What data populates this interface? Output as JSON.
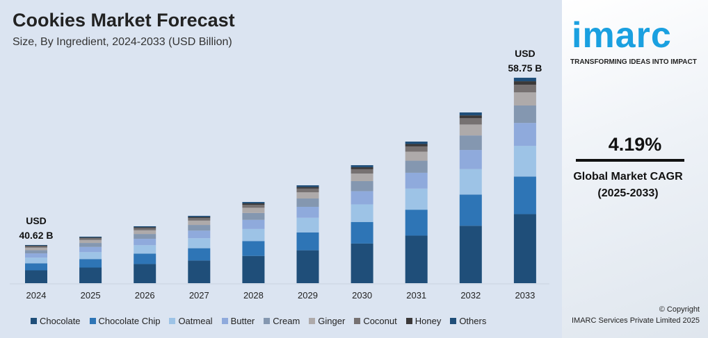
{
  "title": "Cookies Market Forecast",
  "subtitle": "Size, By Ingredient, 2024-2033 (USD Billion)",
  "brand": {
    "logo": "imarc",
    "tagline": "TRANSFORMING IDEAS INTO IMPACT",
    "color": "#1aa0e0"
  },
  "cagr": {
    "value": "4.19%",
    "label_line1": "Global Market CAGR",
    "label_line2": "(2025-2033)"
  },
  "copyright": {
    "line1": "© Copyright",
    "line2": "IMARC Services Private Limited 2025"
  },
  "chart_data": {
    "type": "bar",
    "stacked": true,
    "title": "Cookies Market Forecast",
    "subtitle": "Size, By Ingredient, 2024-2033 (USD Billion)",
    "categories": [
      "2024",
      "2025",
      "2026",
      "2027",
      "2028",
      "2029",
      "2030",
      "2031",
      "2032",
      "2033"
    ],
    "totals": [
      40.62,
      41.52,
      42.65,
      43.78,
      45.28,
      47.09,
      49.27,
      51.83,
      54.99,
      58.75
    ],
    "annotations": [
      {
        "category": "2024",
        "line1": "USD",
        "line2": "40.62 B"
      },
      {
        "category": "2033",
        "line1": "USD",
        "line2": "58.75 B"
      }
    ],
    "legend_position": "bottom",
    "grid": false,
    "series": [
      {
        "name": "Chocolate",
        "color": "#1f4e79",
        "values": [
          13.65,
          13.95,
          14.33,
          14.71,
          15.21,
          15.82,
          16.55,
          17.41,
          18.48,
          19.74
        ]
      },
      {
        "name": "Chocolate Chip",
        "color": "#2e75b6",
        "values": [
          7.43,
          7.6,
          7.8,
          8.01,
          8.29,
          8.62,
          9.02,
          9.48,
          10.06,
          10.75
        ]
      },
      {
        "name": "Oatmeal",
        "color": "#9dc3e6",
        "values": [
          6.05,
          6.19,
          6.35,
          6.52,
          6.75,
          7.02,
          7.34,
          7.72,
          8.19,
          8.75
        ]
      },
      {
        "name": "Butter",
        "color": "#8faadc",
        "values": [
          4.55,
          4.65,
          4.78,
          4.9,
          5.07,
          5.27,
          5.52,
          5.8,
          6.16,
          6.58
        ]
      },
      {
        "name": "Cream",
        "color": "#8497b0",
        "values": [
          3.45,
          3.53,
          3.63,
          3.72,
          3.85,
          4.0,
          4.19,
          4.41,
          4.67,
          4.99
        ]
      },
      {
        "name": "Ginger",
        "color": "#aeaaaa",
        "values": [
          2.6,
          2.66,
          2.73,
          2.8,
          2.9,
          3.01,
          3.15,
          3.32,
          3.52,
          3.76
        ]
      },
      {
        "name": "Coconut",
        "color": "#767171",
        "values": [
          1.5,
          1.54,
          1.58,
          1.62,
          1.68,
          1.74,
          1.82,
          1.92,
          2.03,
          2.17
        ]
      },
      {
        "name": "Honey",
        "color": "#3b3838",
        "values": [
          0.69,
          0.71,
          0.73,
          0.74,
          0.77,
          0.8,
          0.84,
          0.88,
          0.93,
          1.0
        ]
      },
      {
        "name": "Others",
        "color": "#1f4e79",
        "values": [
          0.69,
          0.71,
          0.73,
          0.74,
          0.77,
          0.8,
          0.84,
          0.88,
          0.93,
          1.0
        ]
      }
    ]
  }
}
